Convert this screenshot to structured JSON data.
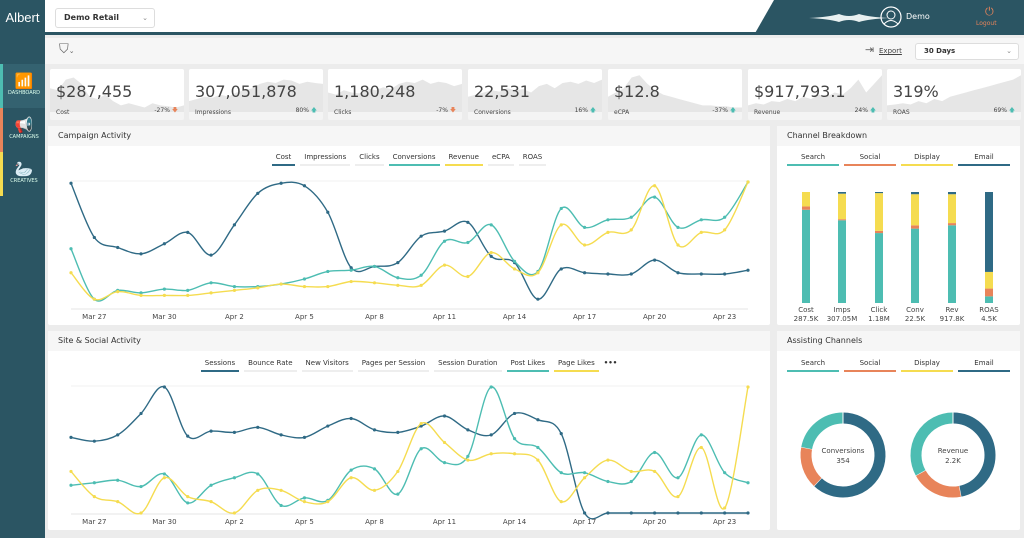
{
  "app": {
    "logo": "Albert",
    "account": "Demo Retail",
    "user": "Demo",
    "logout": "Logout",
    "export": "Export",
    "range": "30 Days"
  },
  "sidebar": [
    {
      "label": "DASHBOARD",
      "icon": "chart-icon",
      "color": "#4dbdb2"
    },
    {
      "label": "CAMPAIGNS",
      "icon": "megaphone-icon",
      "color": "#e8845a"
    },
    {
      "label": "CREATIVES",
      "icon": "swan-icon",
      "color": "#f5dc50"
    }
  ],
  "colors": {
    "search": "#4dbdb2",
    "social": "#e8845a",
    "display": "#f5dc50",
    "email": "#2f6a85",
    "sidebar": "#2b5563"
  },
  "kpis": [
    {
      "value": "$287,455",
      "label": "Cost",
      "change": "-27%",
      "dir": "down",
      "spark": [
        60,
        55,
        80,
        85,
        70,
        40,
        35,
        45,
        30,
        20,
        25,
        20,
        15,
        25,
        20,
        18,
        15,
        20
      ]
    },
    {
      "value": "307,051,878",
      "label": "Impressions",
      "change": "80%",
      "dir": "up",
      "spark": [
        30,
        35,
        40,
        38,
        45,
        40,
        50,
        55,
        60,
        70,
        75,
        72,
        80,
        78,
        70,
        75,
        72,
        70
      ]
    },
    {
      "value": "1,180,248",
      "label": "Clicks",
      "change": "-7%",
      "dir": "down",
      "spark": [
        50,
        45,
        55,
        50,
        48,
        60,
        55,
        62,
        58,
        70,
        75,
        72,
        80,
        70,
        75,
        72,
        65,
        70
      ]
    },
    {
      "value": "22,531",
      "label": "Conversions",
      "change": "16%",
      "dir": "up",
      "spark": [
        40,
        45,
        50,
        55,
        52,
        60,
        55,
        58,
        50,
        65,
        70,
        60,
        72,
        75,
        70,
        78,
        72,
        80
      ]
    },
    {
      "value": "$12.8",
      "label": "eCPA",
      "change": "-37%",
      "dir": "up",
      "spark": [
        40,
        50,
        60,
        85,
        90,
        70,
        55,
        45,
        40,
        35,
        30,
        25,
        20,
        20,
        18,
        18,
        15,
        15
      ]
    },
    {
      "value": "$917,793.1",
      "label": "Revenue",
      "change": "24%",
      "dir": "up",
      "spark": [
        20,
        25,
        22,
        30,
        28,
        35,
        30,
        40,
        35,
        45,
        40,
        50,
        45,
        60,
        80,
        50,
        70,
        90
      ]
    },
    {
      "value": "319%",
      "label": "ROAS",
      "change": "69%",
      "dir": "up",
      "spark": [
        20,
        22,
        25,
        22,
        30,
        25,
        35,
        30,
        40,
        45,
        50,
        55,
        60,
        65,
        70,
        75,
        80,
        90
      ]
    }
  ],
  "campaign": {
    "title": "Campaign Activity",
    "legend": [
      {
        "label": "Cost",
        "color": "#2f6a85"
      },
      {
        "label": "Impressions",
        "color": "#eeeeee"
      },
      {
        "label": "Clicks",
        "color": "#eeeeee"
      },
      {
        "label": "Conversions",
        "color": "#4dbdb2"
      },
      {
        "label": "Revenue",
        "color": "#f5dc50"
      },
      {
        "label": "eCPA",
        "color": "#eeeeee"
      },
      {
        "label": "ROAS",
        "color": "#eeeeee"
      }
    ]
  },
  "site": {
    "title": "Site & Social Activity",
    "legend": [
      {
        "label": "Sessions",
        "color": "#2f6a85"
      },
      {
        "label": "Bounce Rate",
        "color": "#eeeeee"
      },
      {
        "label": "New Visitors",
        "color": "#eeeeee"
      },
      {
        "label": "Pages per Session",
        "color": "#eeeeee"
      },
      {
        "label": "Session Duration",
        "color": "#eeeeee"
      },
      {
        "label": "Post Likes",
        "color": "#4dbdb2"
      },
      {
        "label": "Page Likes",
        "color": "#f5dc50"
      }
    ],
    "more": "•••"
  },
  "channel": {
    "title": "Channel Breakdown"
  },
  "assisting": {
    "title": "Assisting Channels"
  },
  "chart_data": [
    {
      "type": "line",
      "title": "Campaign Activity",
      "x_ticks": [
        "Mar 27",
        "Mar 30",
        "Apr 2",
        "Apr 5",
        "Apr 8",
        "Apr 11",
        "Apr 14",
        "Apr 17",
        "Apr 20",
        "Apr 23"
      ],
      "x_range": [
        "Mar 26",
        "Apr 24"
      ],
      "normalized": true,
      "series": [
        {
          "name": "Cost",
          "color": "#2f6a85",
          "values": [
            99,
            56,
            48,
            43,
            51,
            60,
            42,
            66,
            91,
            99,
            97,
            76,
            32,
            33,
            36,
            57,
            61,
            68,
            41,
            36,
            7,
            31,
            28,
            27,
            27,
            38,
            28,
            27,
            27,
            30
          ]
        },
        {
          "name": "Conversions",
          "color": "#4dbdb2",
          "values": [
            47,
            7,
            14,
            12,
            15,
            14,
            20,
            17,
            17,
            19,
            23,
            29,
            30,
            33,
            24,
            26,
            53,
            52,
            66,
            37,
            29,
            79,
            64,
            70,
            72,
            88,
            64,
            70,
            72,
            100
          ]
        },
        {
          "name": "Revenue",
          "color": "#f5dc50",
          "values": [
            28,
            7,
            13,
            10,
            10,
            10,
            12,
            14,
            16,
            19,
            17,
            17,
            21,
            20,
            18,
            18,
            34,
            25,
            44,
            31,
            28,
            66,
            50,
            60,
            62,
            97,
            50,
            60,
            62,
            100
          ]
        }
      ]
    },
    {
      "type": "line",
      "title": "Site & Social Activity",
      "x_ticks": [
        "Mar 27",
        "Mar 30",
        "Apr 2",
        "Apr 5",
        "Apr 8",
        "Apr 11",
        "Apr 14",
        "Apr 17",
        "Apr 20",
        "Apr 23"
      ],
      "x_range": [
        "Mar 26",
        "Apr 24"
      ],
      "normalized": true,
      "series": [
        {
          "name": "Sessions",
          "color": "#2f6a85",
          "values": [
            60,
            57,
            62,
            79,
            100,
            61,
            65,
            64,
            68,
            62,
            60,
            69,
            75,
            66,
            64,
            69,
            77,
            66,
            62,
            79,
            74,
            63,
            0,
            0,
            0,
            0,
            0,
            0,
            0,
            0
          ]
        },
        {
          "name": "Post Likes",
          "color": "#4dbdb2",
          "values": [
            22,
            24,
            26,
            21,
            31,
            8,
            22,
            28,
            31,
            6,
            12,
            10,
            34,
            35,
            15,
            51,
            40,
            45,
            100,
            59,
            52,
            32,
            32,
            25,
            25,
            48,
            28,
            62,
            32,
            24
          ]
        },
        {
          "name": "Page Likes",
          "color": "#f5dc50",
          "values": [
            33,
            13,
            9,
            0,
            28,
            13,
            9,
            0,
            18,
            18,
            9,
            9,
            28,
            18,
            33,
            71,
            56,
            42,
            47,
            47,
            42,
            9,
            28,
            42,
            33,
            33,
            13,
            52,
            4,
            100
          ]
        }
      ]
    },
    {
      "type": "bar",
      "stacked": true,
      "title": "Channel Breakdown",
      "unit": "percent share",
      "legend": [
        "Search",
        "Social",
        "Display",
        "Email"
      ],
      "categories": [
        {
          "label": "Cost",
          "total": "287.5K"
        },
        {
          "label": "Imps",
          "total": "307.05M"
        },
        {
          "label": "Click",
          "total": "1.18M"
        },
        {
          "label": "Conv",
          "total": "22.5K"
        },
        {
          "label": "Rev",
          "total": "917.8K"
        },
        {
          "label": "ROAS",
          "total": "4.5K"
        }
      ],
      "series": [
        {
          "name": "Search",
          "values": [
            84,
            74.5,
            63,
            67,
            70,
            6
          ]
        },
        {
          "name": "Social",
          "values": [
            3,
            1,
            2,
            3,
            2,
            7
          ]
        },
        {
          "name": "Display",
          "values": [
            13,
            23,
            34,
            28,
            26,
            15
          ]
        },
        {
          "name": "Email",
          "values": [
            0,
            1.5,
            1,
            2,
            2,
            72
          ]
        }
      ]
    },
    {
      "type": "pie",
      "donut": true,
      "title": "Assisting Channels",
      "legend": [
        "Search",
        "Social",
        "Display",
        "Email"
      ],
      "charts": [
        {
          "label": "Conversions",
          "total": "354",
          "values": {
            "Email": 62,
            "Social": 16,
            "Display": 0,
            "Search": 22
          }
        },
        {
          "label": "Revenue",
          "total": "2.2K",
          "values": {
            "Email": 47,
            "Social": 20,
            "Display": 0,
            "Search": 33
          }
        }
      ]
    }
  ]
}
